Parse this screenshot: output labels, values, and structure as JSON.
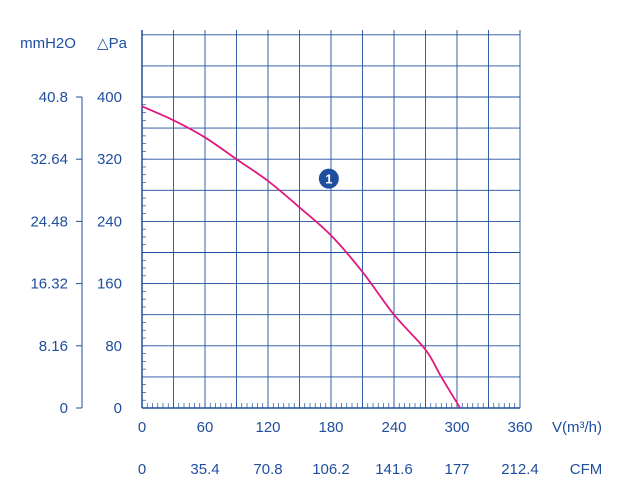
{
  "chart_data": {
    "type": "line",
    "colors": {
      "axis": "#1f4e9e",
      "grid": "#1f4e9e",
      "curve": "#e0197d",
      "badge": "#1f4e9e"
    },
    "y_label_left": "mmH2O",
    "y_label_right": "△Pa",
    "x_label": "V(m³/h)",
    "x2_label": "CFM",
    "xlim": [
      0,
      360
    ],
    "ylim": [
      0,
      400
    ],
    "y_major_ticks": [
      0,
      80,
      160,
      240,
      320,
      400
    ],
    "y_mmh2o_ticks": [
      "0",
      "8.16",
      "16.32",
      "24.48",
      "32.64",
      "40.8"
    ],
    "x_ticks": [
      "0",
      "60",
      "120",
      "180",
      "240",
      "300",
      "360"
    ],
    "x2_ticks": [
      "0",
      "35.4",
      "70.8",
      "106.2",
      "141.6",
      "177",
      "212.4"
    ],
    "grid": true,
    "series": [
      {
        "badge": "1",
        "x": [
          0,
          30,
          60,
          90,
          120,
          150,
          180,
          210,
          240,
          270,
          285,
          303
        ],
        "y": [
          388,
          370,
          348,
          320,
          292,
          258,
          222,
          175,
          120,
          75,
          40,
          0
        ]
      }
    ],
    "badge_at": {
      "x": 177,
      "y": 295
    }
  }
}
